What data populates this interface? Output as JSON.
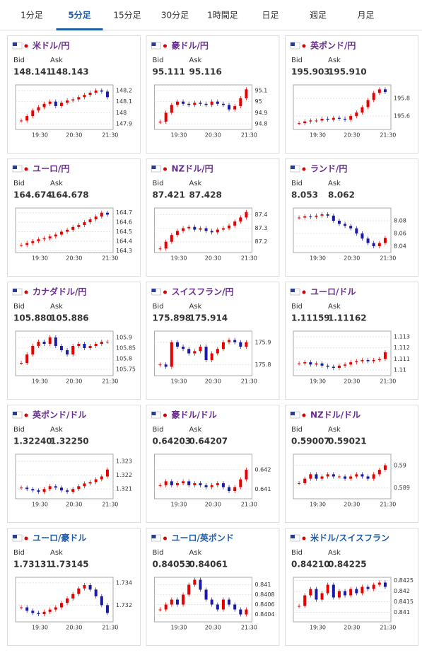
{
  "tabs": [
    "1分足",
    "5分足",
    "15分足",
    "30分足",
    "1時間足",
    "日足",
    "週足",
    "月足"
  ],
  "active_tab": 1,
  "cards": [
    {
      "title": "米ドル/円",
      "color": "#6a2c91",
      "bid_label": "Bid",
      "ask_label": "Ask",
      "bid": "148.141",
      "ask": "148.143",
      "xticks": [
        "19:30",
        "20:30",
        "21:30"
      ],
      "ylim": [
        147.85,
        148.25
      ],
      "yticks": [
        147.9,
        148,
        148.1,
        148.2
      ],
      "closes": [
        147.93,
        147.97,
        148.02,
        148.05,
        148.08,
        148.1,
        148.06,
        148.09,
        148.11,
        148.12,
        148.14,
        148.16,
        148.18,
        148.2,
        148.19,
        148.14
      ]
    },
    {
      "title": "豪ドル/円",
      "color": "#6a2c91",
      "bid_label": "Bid",
      "ask_label": "Ask",
      "bid": "95.111",
      "ask": "95.116",
      "xticks": [
        "19:30",
        "20:30",
        "21:30"
      ],
      "ylim": [
        94.75,
        95.15
      ],
      "yticks": [
        94.8,
        94.9,
        95,
        95.1
      ],
      "closes": [
        94.82,
        94.9,
        94.97,
        95.0,
        94.98,
        94.97,
        94.99,
        94.98,
        94.97,
        95.0,
        94.98,
        94.97,
        94.93,
        94.96,
        95.03,
        95.11
      ]
    },
    {
      "title": "英ポンド/円",
      "color": "#6a2c91",
      "bid_label": "Bid",
      "ask_label": "Ask",
      "bid": "195.903",
      "ask": "195.910",
      "xticks": [
        "19:30",
        "20:30",
        "21:30"
      ],
      "ylim": [
        195.45,
        195.95
      ],
      "yticks": [
        195.6,
        195.8
      ],
      "closes": [
        195.52,
        195.54,
        195.55,
        195.55,
        195.57,
        195.56,
        195.58,
        195.57,
        195.56,
        195.6,
        195.64,
        195.7,
        195.78,
        195.86,
        195.9,
        195.87
      ]
    },
    {
      "title": "ユーロ/円",
      "color": "#6a2c91",
      "bid_label": "Bid",
      "ask_label": "Ask",
      "bid": "164.674",
      "ask": "164.678",
      "xticks": [
        "19:30",
        "20:30",
        "21:30"
      ],
      "ylim": [
        164.28,
        164.75
      ],
      "yticks": [
        164.3,
        164.4,
        164.5,
        164.6,
        164.7
      ],
      "closes": [
        164.36,
        164.38,
        164.4,
        164.42,
        164.43,
        164.45,
        164.47,
        164.5,
        164.52,
        164.55,
        164.57,
        164.6,
        164.63,
        164.66,
        164.7,
        164.68
      ]
    },
    {
      "title": "NZドル/円",
      "color": "#6a2c91",
      "bid_label": "Bid",
      "ask_label": "Ask",
      "bid": "87.421",
      "ask": "87.428",
      "xticks": [
        "19:30",
        "20:30",
        "21:30"
      ],
      "ylim": [
        87.12,
        87.45
      ],
      "yticks": [
        87.2,
        87.3,
        87.4
      ],
      "closes": [
        87.15,
        87.2,
        87.25,
        87.28,
        87.3,
        87.31,
        87.29,
        87.3,
        87.28,
        87.27,
        87.29,
        87.3,
        87.32,
        87.35,
        87.38,
        87.42
      ]
    },
    {
      "title": "ランド/円",
      "color": "#6a2c91",
      "bid_label": "Bid",
      "ask_label": "Ask",
      "bid": "8.053",
      "ask": "8.062",
      "xticks": [
        "19:30",
        "20:30",
        "21:30"
      ],
      "ylim": [
        8.03,
        8.1
      ],
      "yticks": [
        8.04,
        8.06,
        8.08
      ],
      "closes": [
        8.085,
        8.087,
        8.086,
        8.088,
        8.09,
        8.088,
        8.08,
        8.075,
        8.072,
        8.068,
        8.06,
        8.052,
        8.045,
        8.04,
        8.045,
        8.053
      ]
    },
    {
      "title": "カナダドル/円",
      "color": "#6a2c91",
      "bid_label": "Bid",
      "ask_label": "Ask",
      "bid": "105.880",
      "ask": "105.886",
      "xticks": [
        "19:30",
        "20:30",
        "21:30"
      ],
      "ylim": [
        105.72,
        105.93
      ],
      "yticks": [
        105.75,
        105.8,
        105.85,
        105.9
      ],
      "closes": [
        105.78,
        105.82,
        105.86,
        105.88,
        105.87,
        105.9,
        105.86,
        105.84,
        105.82,
        105.86,
        105.87,
        105.85,
        105.86,
        105.87,
        105.88,
        105.88
      ]
    },
    {
      "title": "スイスフラン/円",
      "color": "#6a2c91",
      "bid_label": "Bid",
      "ask_label": "Ask",
      "bid": "175.898",
      "ask": "175.914",
      "xticks": [
        "19:30",
        "20:30",
        "21:30"
      ],
      "ylim": [
        175.75,
        175.95
      ],
      "yticks": [
        175.8,
        175.9
      ],
      "closes": [
        175.8,
        175.79,
        175.9,
        175.88,
        175.87,
        175.85,
        175.86,
        175.88,
        175.82,
        175.85,
        175.87,
        175.9,
        175.91,
        175.9,
        175.88,
        175.9
      ]
    },
    {
      "title": "ユーロ/ドル",
      "color": "#6a2c91",
      "bid_label": "Bid",
      "ask_label": "Ask",
      "bid": "1.11159",
      "ask": "1.11162",
      "xticks": [
        "19:30",
        "20:30",
        "21:30"
      ],
      "ylim": [
        1.1095,
        1.1135
      ],
      "yticks": [
        1.11,
        1.111,
        1.112,
        1.113
      ],
      "closes": [
        1.1106,
        1.1107,
        1.1105,
        1.1106,
        1.1104,
        1.1103,
        1.1102,
        1.1104,
        1.1105,
        1.1107,
        1.1108,
        1.1109,
        1.1108,
        1.1109,
        1.111,
        1.1116
      ]
    },
    {
      "title": "英ポンド/ドル",
      "color": "#6a2c91",
      "bid_label": "Bid",
      "ask_label": "Ask",
      "bid": "1.32240",
      "ask": "1.32250",
      "xticks": [
        "19:30",
        "20:30",
        "21:30"
      ],
      "ylim": [
        1.3203,
        1.3235
      ],
      "yticks": [
        1.321,
        1.322,
        1.323
      ],
      "closes": [
        1.3211,
        1.321,
        1.3209,
        1.3208,
        1.321,
        1.3212,
        1.3211,
        1.3209,
        1.3208,
        1.321,
        1.3212,
        1.3214,
        1.3215,
        1.3217,
        1.3219,
        1.3224
      ]
    },
    {
      "title": "豪ドル/ドル",
      "color": "#6a2c91",
      "bid_label": "Bid",
      "ask_label": "Ask",
      "bid": "0.64203",
      "ask": "0.64207",
      "xticks": [
        "19:30",
        "20:30",
        "21:30"
      ],
      "ylim": [
        0.6405,
        0.6428
      ],
      "yticks": [
        0.641,
        0.642
      ],
      "closes": [
        0.6412,
        0.6414,
        0.6412,
        0.6413,
        0.6414,
        0.6412,
        0.6413,
        0.6412,
        0.6411,
        0.6412,
        0.6413,
        0.6411,
        0.6409,
        0.6411,
        0.6415,
        0.642
      ]
    },
    {
      "title": "NZドル/ドル",
      "color": "#6a2c91",
      "bid_label": "Bid",
      "ask_label": "Ask",
      "bid": "0.59007",
      "ask": "0.59021",
      "xticks": [
        "19:30",
        "20:30",
        "21:30"
      ],
      "ylim": [
        0.5885,
        0.5905
      ],
      "yticks": [
        0.589,
        0.59
      ],
      "closes": [
        0.5892,
        0.5894,
        0.5896,
        0.5894,
        0.5895,
        0.5896,
        0.5895,
        0.5895,
        0.5894,
        0.5895,
        0.5896,
        0.5895,
        0.5894,
        0.5896,
        0.5898,
        0.59
      ]
    },
    {
      "title": "ユーロ/豪ドル",
      "color": "#1f5ea8",
      "bid_label": "Bid",
      "ask_label": "Ask",
      "bid": "1.73131",
      "ask": "1.73145",
      "xticks": [
        "19:30",
        "20:30",
        "21:30"
      ],
      "ylim": [
        1.7305,
        1.7345
      ],
      "yticks": [
        1.732,
        1.734
      ],
      "closes": [
        1.7318,
        1.7315,
        1.7313,
        1.7312,
        1.7314,
        1.7316,
        1.7318,
        1.7322,
        1.7326,
        1.733,
        1.7335,
        1.7338,
        1.7334,
        1.7328,
        1.732,
        1.7313
      ]
    },
    {
      "title": "ユーロ/英ポンド",
      "color": "#1f5ea8",
      "bid_label": "Bid",
      "ask_label": "Ask",
      "bid": "0.84053",
      "ask": "0.84061",
      "xticks": [
        "19:30",
        "20:30",
        "21:30"
      ],
      "ylim": [
        0.84025,
        0.84115
      ],
      "yticks": [
        0.8404,
        0.8406,
        0.8408,
        0.841
      ],
      "closes": [
        0.8405,
        0.8406,
        0.8407,
        0.8406,
        0.8408,
        0.841,
        0.8411,
        0.8409,
        0.8407,
        0.8406,
        0.8405,
        0.8407,
        0.8406,
        0.8405,
        0.8404,
        0.8405
      ]
    },
    {
      "title": "米ドル/スイスフラン",
      "color": "#1f5ea8",
      "bid_label": "Bid",
      "ask_label": "Ask",
      "bid": "0.84210",
      "ask": "0.84225",
      "xticks": [
        "19:30",
        "20:30",
        "21:30"
      ],
      "ylim": [
        0.84055,
        0.84265
      ],
      "yticks": [
        0.841,
        0.8415,
        0.842,
        0.8425
      ],
      "closes": [
        0.8413,
        0.8418,
        0.8421,
        0.8416,
        0.8419,
        0.8423,
        0.8417,
        0.842,
        0.8418,
        0.8421,
        0.8419,
        0.8422,
        0.8421,
        0.8423,
        0.8424,
        0.8422
      ]
    }
  ]
}
